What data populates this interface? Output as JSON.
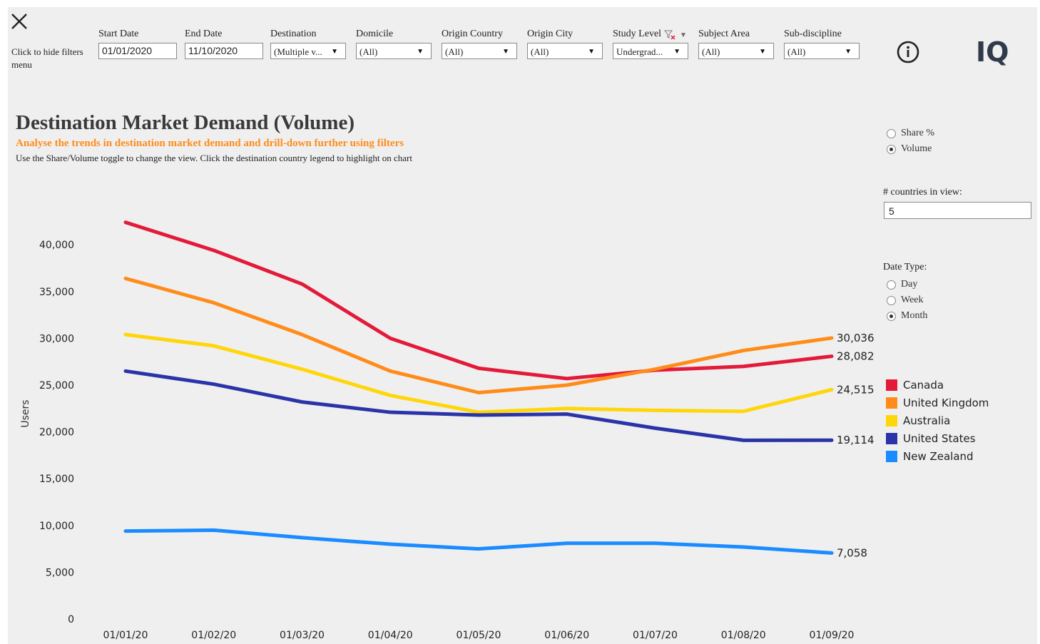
{
  "header": {
    "close_icon": "close-icon",
    "hide_filters_text": "Click to hide filters menu"
  },
  "filters": {
    "start_date": {
      "label": "Start Date",
      "value": "01/01/2020"
    },
    "end_date": {
      "label": "End Date",
      "value": "11/10/2020"
    },
    "destination": {
      "label": "Destination",
      "value": "(Multiple v..."
    },
    "domicile": {
      "label": "Domicile",
      "value": "(All)"
    },
    "origin_country": {
      "label": "Origin Country",
      "value": "(All)"
    },
    "origin_city": {
      "label": "Origin City",
      "value": "(All)"
    },
    "study_level": {
      "label": "Study Level",
      "value": "Undergrad..."
    },
    "subject_area": {
      "label": "Subject Area",
      "value": "(All)"
    },
    "sub_discipline": {
      "label": "Sub-discipline",
      "value": "(All)"
    }
  },
  "logo_text": "IQ",
  "title": "Destination Market Demand (Volume)",
  "subtitle": "Analyse the trends in destination market demand and drill-down further using filters",
  "description": "Use the Share/Volume toggle to change the view. Click the destination country legend to highlight on chart",
  "view_toggle": {
    "options": [
      "Share %",
      "Volume"
    ],
    "selected": "Volume"
  },
  "countries_in_view": {
    "label": "# countries in view:",
    "value": "5"
  },
  "date_type": {
    "label": "Date Type:",
    "options": [
      "Day",
      "Week",
      "Month"
    ],
    "selected": "Month"
  },
  "colors": {
    "canada": "#e31a3a",
    "united_kingdom": "#ff8c1a",
    "australia": "#ffd60a",
    "united_states": "#2b33a8",
    "new_zealand": "#1a8cff"
  },
  "chart_data": {
    "type": "line",
    "title": "Destination Market Demand (Volume)",
    "xlabel": "",
    "ylabel": "Users",
    "ylim": [
      0,
      43000
    ],
    "yticks": [
      0,
      5000,
      10000,
      15000,
      20000,
      25000,
      30000,
      35000,
      40000
    ],
    "ytick_labels": [
      "0",
      "5,000",
      "10,000",
      "15,000",
      "20,000",
      "25,000",
      "30,000",
      "35,000",
      "40,000"
    ],
    "grid": false,
    "legend": "right",
    "categories": [
      "01/01/20",
      "01/02/20",
      "01/03/20",
      "01/04/20",
      "01/05/20",
      "01/06/20",
      "01/07/20",
      "01/08/20",
      "01/09/20"
    ],
    "series": [
      {
        "name": "Canada",
        "color": "#e31a3a",
        "values": [
          42400,
          39400,
          35800,
          30000,
          26800,
          25700,
          26600,
          27000,
          28082
        ],
        "end_label": "28,082"
      },
      {
        "name": "United Kingdom",
        "color": "#ff8c1a",
        "values": [
          36400,
          33800,
          30400,
          26500,
          24200,
          25000,
          26700,
          28700,
          30036
        ],
        "end_label": "30,036"
      },
      {
        "name": "Australia",
        "color": "#ffd60a",
        "values": [
          30400,
          29200,
          26700,
          23900,
          22100,
          22500,
          22300,
          22200,
          24515
        ],
        "end_label": "24,515"
      },
      {
        "name": "United States",
        "color": "#2b33a8",
        "values": [
          26500,
          25100,
          23200,
          22100,
          21800,
          21900,
          20400,
          19100,
          19114
        ],
        "end_label": "19,114"
      },
      {
        "name": "New Zealand",
        "color": "#1a8cff",
        "values": [
          9400,
          9500,
          8700,
          8000,
          7500,
          8100,
          8100,
          7700,
          7058
        ],
        "end_label": "7,058"
      }
    ]
  }
}
